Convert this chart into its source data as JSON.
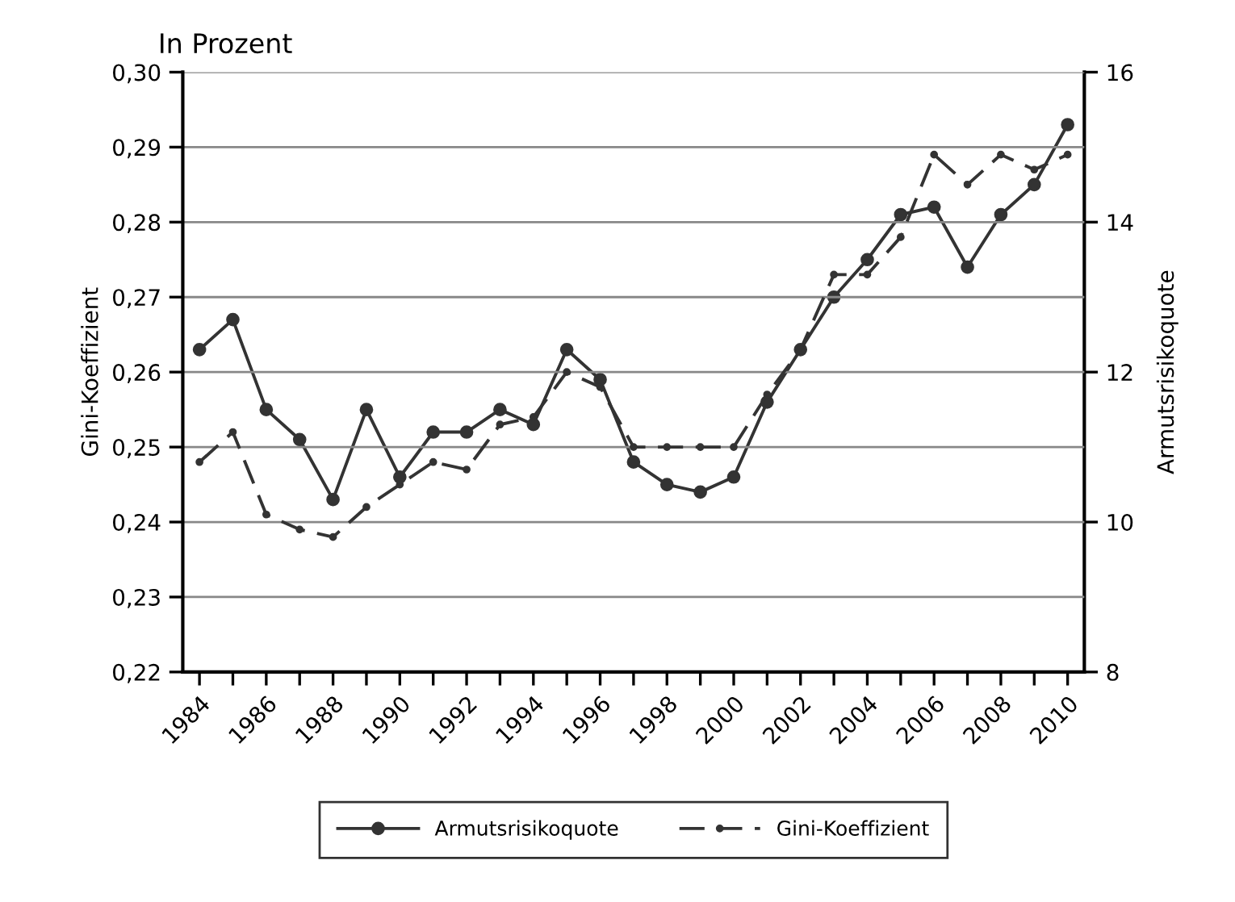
{
  "chart_data": {
    "type": "line",
    "title": "In Prozent",
    "ylabel": "Gini-Koeffizient",
    "y2label": "Armutsrisikoquote",
    "x": [
      1984,
      1985,
      1986,
      1987,
      1988,
      1989,
      1990,
      1991,
      1992,
      1993,
      1994,
      1995,
      1996,
      1997,
      1998,
      1999,
      2000,
      2001,
      2002,
      2003,
      2004,
      2005,
      2006,
      2007,
      2008,
      2009,
      2010
    ],
    "series": [
      {
        "name": "Armutsrisikoquote",
        "color": "#333333",
        "axis": "y2",
        "marker": "circle",
        "line_style": "solid",
        "values": [
          12.3,
          12.7,
          11.5,
          11.1,
          10.3,
          11.5,
          10.6,
          11.2,
          11.2,
          11.5,
          11.3,
          12.3,
          11.9,
          10.8,
          10.5,
          10.4,
          10.6,
          11.6,
          12.3,
          13.0,
          13.5,
          14.1,
          14.2,
          13.4,
          14.1,
          14.5,
          15.3
        ]
      },
      {
        "name": "Gini-Koeffizient",
        "color": "#333333",
        "marker": "circle",
        "line_style": "dashed",
        "values": [
          0.248,
          0.252,
          0.241,
          0.239,
          0.238,
          0.242,
          0.245,
          0.248,
          0.247,
          0.253,
          0.254,
          0.26,
          0.258,
          0.25,
          0.25,
          0.25,
          0.25,
          0.257,
          0.263,
          0.273,
          0.273,
          0.278,
          0.289,
          0.285,
          0.289,
          0.287,
          0.289
        ]
      }
    ],
    "xlim": [
      1983.5,
      2010.5
    ],
    "xticks": [
      1984,
      {
        "value": 1985,
        "label": null
      },
      1986,
      {
        "value": 1987,
        "label": null
      },
      1988,
      {
        "value": 1989,
        "label": null
      },
      1990,
      {
        "value": 1991,
        "label": null
      },
      1992,
      {
        "value": 1993,
        "label": null
      },
      1994,
      {
        "value": 1995,
        "label": null
      },
      1996,
      {
        "value": 1997,
        "label": null
      },
      1998,
      {
        "value": 1999,
        "label": null
      },
      2000,
      {
        "value": 2001,
        "label": null
      },
      2002,
      {
        "value": 2003,
        "label": null
      },
      2004,
      {
        "value": 2005,
        "label": null
      },
      2006,
      {
        "value": 2007,
        "label": null
      },
      2008,
      {
        "value": 2009,
        "label": null
      },
      2010
    ],
    "ylim": [
      0.22,
      0.3
    ],
    "yticks": [
      {
        "value": 0.22,
        "label": "0,22"
      },
      {
        "value": 0.23,
        "label": "0,23"
      },
      {
        "value": 0.24,
        "label": "0,24"
      },
      {
        "value": 0.25,
        "label": "0,25"
      },
      {
        "value": 0.26,
        "label": "0,26"
      },
      {
        "value": 0.27,
        "label": "0,27"
      },
      {
        "value": 0.28,
        "label": "0,28"
      },
      {
        "value": 0.29,
        "label": "0,29"
      },
      {
        "value": 0.3,
        "label": "0,30"
      }
    ],
    "y2lim": [
      8,
      16
    ],
    "y2ticks": [
      8,
      10,
      12,
      14,
      16
    ],
    "grid": "y",
    "legend": "bottom"
  }
}
